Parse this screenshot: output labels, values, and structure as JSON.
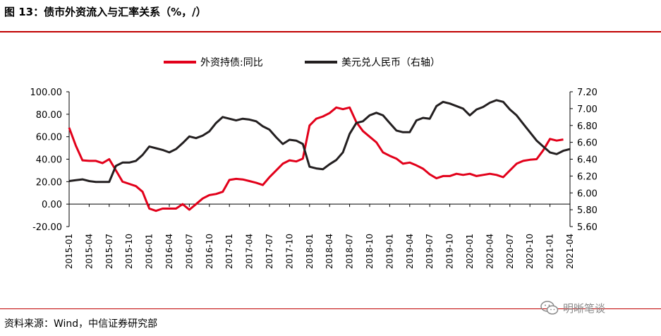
{
  "header": {
    "title": "图 13：债市外资流入与汇率关系（%，/）"
  },
  "footer": {
    "source": "资料来源：Wind，中信证券研究部",
    "watermark": "明晰笔谈"
  },
  "chart_data": {
    "type": "line",
    "x": [
      "2015-01",
      "2015-02",
      "2015-03",
      "2015-04",
      "2015-05",
      "2015-06",
      "2015-07",
      "2015-08",
      "2015-09",
      "2015-10",
      "2015-11",
      "2015-12",
      "2016-01",
      "2016-02",
      "2016-03",
      "2016-04",
      "2016-05",
      "2016-06",
      "2016-07",
      "2016-08",
      "2016-09",
      "2016-10",
      "2016-11",
      "2016-12",
      "2017-01",
      "2017-02",
      "2017-03",
      "2017-04",
      "2017-05",
      "2017-06",
      "2017-07",
      "2017-08",
      "2017-09",
      "2017-10",
      "2017-11",
      "2017-12",
      "2018-01",
      "2018-02",
      "2018-03",
      "2018-04",
      "2018-05",
      "2018-06",
      "2018-07",
      "2018-08",
      "2018-09",
      "2018-10",
      "2018-11",
      "2018-12",
      "2019-01",
      "2019-02",
      "2019-03",
      "2019-04",
      "2019-05",
      "2019-06",
      "2019-07",
      "2019-08",
      "2019-09",
      "2019-10",
      "2019-11",
      "2019-12",
      "2020-01",
      "2020-02",
      "2020-03",
      "2020-04",
      "2020-05",
      "2020-06",
      "2020-07",
      "2020-08",
      "2020-09",
      "2020-10",
      "2020-11",
      "2020-12",
      "2021-01",
      "2021-02",
      "2021-03",
      "2021-04"
    ],
    "x_tick_labels": [
      "2015-01",
      "2015-04",
      "2015-07",
      "2015-10",
      "2016-01",
      "2016-04",
      "2016-07",
      "2016-10",
      "2017-01",
      "2017-04",
      "2017-07",
      "2017-10",
      "2018-01",
      "2018-04",
      "2018-07",
      "2018-10",
      "2019-01",
      "2019-04",
      "2019-07",
      "2019-10",
      "2020-01",
      "2020-04",
      "2020-07",
      "2020-10",
      "2021-01",
      "2021-04"
    ],
    "series": [
      {
        "name": "外资持债:同比",
        "axis": "left",
        "color": "#e2001a",
        "values": [
          68,
          52,
          39,
          38.5,
          38.5,
          36.5,
          40,
          30,
          20,
          18,
          16,
          11,
          -4,
          -6,
          -4,
          -4,
          -4,
          0,
          -5,
          0,
          5,
          8,
          9,
          11,
          21.5,
          22.5,
          22,
          20.5,
          19,
          17,
          24,
          30,
          36,
          39,
          38,
          40.5,
          70,
          76,
          78,
          81,
          86,
          84.5,
          86,
          73,
          65,
          60,
          55,
          46,
          43,
          40.5,
          36,
          37,
          34.5,
          31.5,
          26.5,
          23,
          25,
          25,
          27,
          26,
          27,
          25,
          26,
          27,
          26,
          24,
          30,
          36,
          38.5,
          39.5,
          40,
          48,
          58,
          56.5,
          57.5,
          null
        ]
      },
      {
        "name": "美元兑人民币（右轴）",
        "axis": "right",
        "color": "#231f20",
        "values": [
          6.14,
          6.15,
          6.16,
          6.14,
          6.13,
          6.13,
          6.13,
          6.32,
          6.36,
          6.36,
          6.38,
          6.45,
          6.55,
          6.53,
          6.51,
          6.48,
          6.52,
          6.59,
          6.67,
          6.65,
          6.68,
          6.73,
          6.83,
          6.9,
          6.88,
          6.86,
          6.88,
          6.87,
          6.85,
          6.79,
          6.75,
          6.66,
          6.58,
          6.63,
          6.62,
          6.58,
          6.31,
          6.29,
          6.28,
          6.34,
          6.39,
          6.48,
          6.7,
          6.83,
          6.85,
          6.92,
          6.95,
          6.92,
          6.83,
          6.74,
          6.72,
          6.72,
          6.86,
          6.89,
          6.88,
          7.03,
          7.08,
          7.06,
          7.03,
          7.0,
          6.92,
          6.99,
          7.02,
          7.07,
          7.1,
          7.08,
          6.99,
          6.92,
          6.82,
          6.72,
          6.62,
          6.55,
          6.48,
          6.46,
          6.5,
          6.52
        ]
      }
    ],
    "y_left": {
      "min": -20,
      "max": 100,
      "ticks": [
        "-20.00",
        "0.00",
        "20.00",
        "40.00",
        "60.00",
        "80.00",
        "100.00"
      ]
    },
    "y_right": {
      "min": 5.6,
      "max": 7.2,
      "ticks": [
        "5.60",
        "5.80",
        "6.00",
        "6.20",
        "6.40",
        "6.60",
        "6.80",
        "7.00",
        "7.20"
      ]
    },
    "legend_position": "top-center",
    "grid": false
  }
}
